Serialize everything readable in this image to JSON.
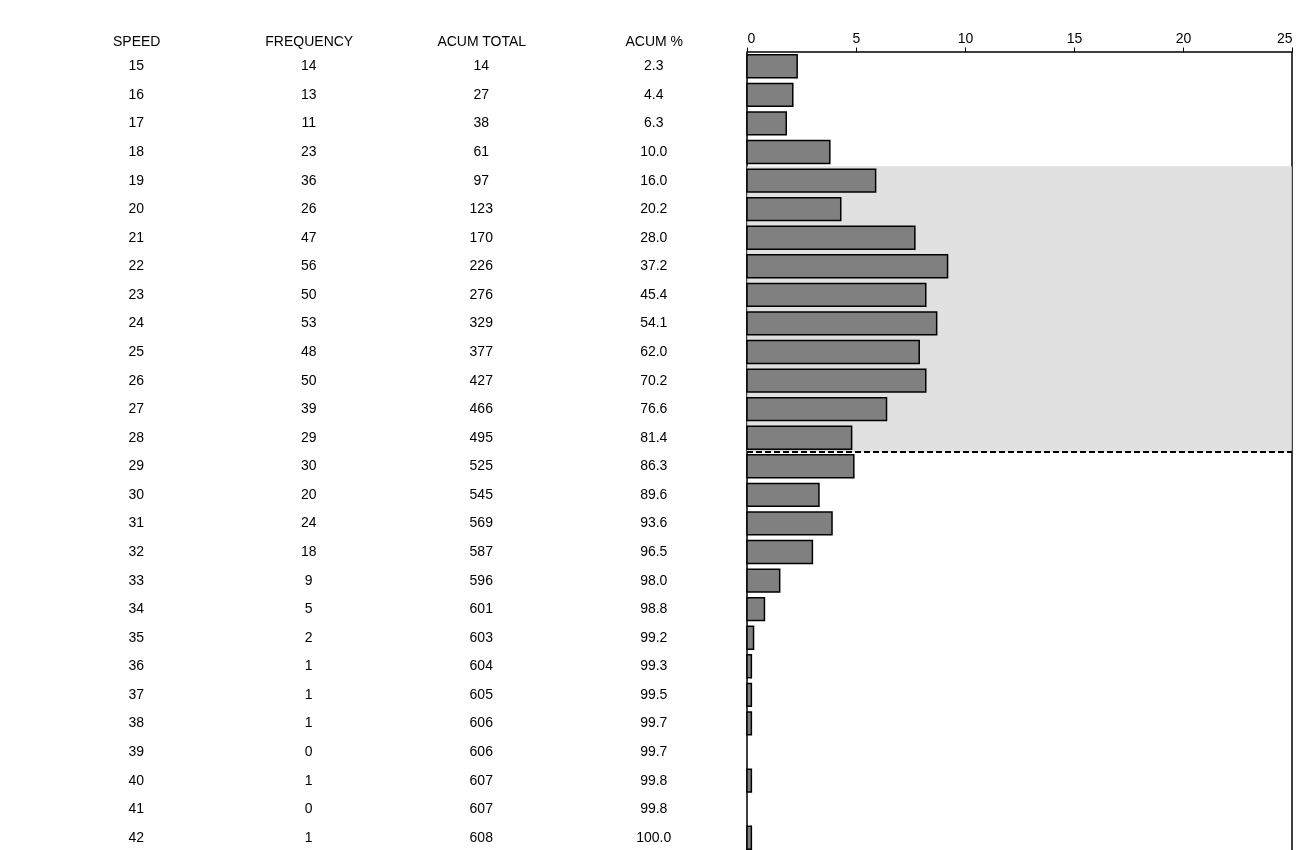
{
  "chart_data": [
    {
      "type": "other",
      "categories": [
        "SPEED",
        "FREQUENCY",
        "ACUM TOTAL",
        "ACUM %"
      ],
      "cells": [
        [
          "15",
          "14",
          "14",
          "2.3"
        ],
        [
          "16",
          "13",
          "27",
          "4.4"
        ],
        [
          "17",
          "11",
          "38",
          "6.3"
        ],
        [
          "18",
          "23",
          "61",
          "10.0"
        ],
        [
          "19",
          "36",
          "97",
          "16.0"
        ],
        [
          "20",
          "26",
          "123",
          "20.2"
        ],
        [
          "21",
          "47",
          "170",
          "28.0"
        ],
        [
          "22",
          "56",
          "226",
          "37.2"
        ],
        [
          "23",
          "50",
          "276",
          "45.4"
        ],
        [
          "24",
          "53",
          "329",
          "54.1"
        ],
        [
          "25",
          "48",
          "377",
          "62.0"
        ],
        [
          "26",
          "50",
          "427",
          "70.2"
        ],
        [
          "27",
          "39",
          "466",
          "76.6"
        ],
        [
          "28",
          "29",
          "495",
          "81.4"
        ],
        [
          "29",
          "30",
          "525",
          "86.3"
        ],
        [
          "30",
          "20",
          "545",
          "89.6"
        ],
        [
          "31",
          "24",
          "569",
          "93.6"
        ],
        [
          "32",
          "18",
          "587",
          "96.5"
        ],
        [
          "33",
          "9",
          "596",
          "98.0"
        ],
        [
          "34",
          "5",
          "601",
          "98.8"
        ],
        [
          "35",
          "2",
          "603",
          "99.2"
        ],
        [
          "36",
          "1",
          "604",
          "99.3"
        ],
        [
          "37",
          "1",
          "605",
          "99.5"
        ],
        [
          "38",
          "1",
          "606",
          "99.7"
        ],
        [
          "39",
          "0",
          "606",
          "99.7"
        ],
        [
          "40",
          "1",
          "607",
          "99.8"
        ],
        [
          "41",
          "0",
          "607",
          "99.8"
        ],
        [
          "42",
          "1",
          "608",
          "100.0"
        ]
      ]
    },
    {
      "type": "bar",
      "orientation": "horizontal",
      "categories": [
        "15",
        "16",
        "17",
        "18",
        "19",
        "20",
        "21",
        "22",
        "23",
        "24",
        "25",
        "26",
        "27",
        "28",
        "29",
        "30",
        "31",
        "32",
        "33",
        "34",
        "35",
        "36",
        "37",
        "38",
        "39",
        "40",
        "41",
        "42"
      ],
      "values": [
        2.3,
        2.1,
        1.8,
        3.8,
        5.9,
        4.3,
        7.7,
        9.2,
        8.2,
        8.7,
        7.9,
        8.2,
        6.4,
        4.8,
        4.9,
        3.3,
        3.9,
        3.0,
        1.5,
        0.8,
        0.3,
        0.2,
        0.2,
        0.2,
        0,
        0.2,
        0,
        0.2
      ],
      "color": "#808080",
      "xlim": [
        0,
        25
      ],
      "xticks": [
        0,
        5,
        10,
        15,
        20,
        25
      ],
      "tick_labels": "x",
      "grid": false,
      "bands": [
        {
          "axis": "y",
          "from": "19",
          "to": "28",
          "color": "#d9d9d9"
        }
      ]
    }
  ]
}
